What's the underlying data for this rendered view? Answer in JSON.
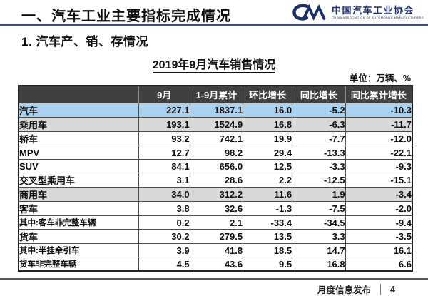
{
  "header": {
    "title": "一、汽车工业主要指标完成情况",
    "logo": {
      "mark": "CM-swoosh",
      "name_cn": "中国汽车工业协会",
      "name_en": "CHINA ASSOCIATION OF AUTOMOBILE MANUFACTURERS"
    }
  },
  "section_title": "1. 汽车产、销、存情况",
  "table_title": "2019年9月汽车销售情况",
  "unit_label": "单位：万辆、%",
  "table": {
    "columns": [
      "",
      "9月",
      "1-9月累计",
      "环比增长",
      "同比增长",
      "同比累计增长"
    ],
    "rows": [
      {
        "label": "汽车",
        "values": [
          "227.1",
          "1837.1",
          "16.0",
          "-5.2",
          "-10.3"
        ],
        "style": "blue",
        "indent": 0,
        "small": false
      },
      {
        "label": "乘用车",
        "values": [
          "193.1",
          "1524.9",
          "16.8",
          "-6.3",
          "-11.7"
        ],
        "style": "gray",
        "indent": 1,
        "small": false
      },
      {
        "label": "轿车",
        "values": [
          "93.2",
          "742.1",
          "19.9",
          "-7.7",
          "-12.0"
        ],
        "style": "white",
        "indent": 3,
        "small": false
      },
      {
        "label": "MPV",
        "values": [
          "12.7",
          "98.2",
          "29.4",
          "-13.3",
          "-22.1"
        ],
        "style": "white",
        "indent": 3,
        "small": false
      },
      {
        "label": "SUV",
        "values": [
          "84.1",
          "656.0",
          "12.5",
          "-3.3",
          "-9.3"
        ],
        "style": "white",
        "indent": 3,
        "small": false
      },
      {
        "label": "交叉型乘用车",
        "values": [
          "3.1",
          "28.6",
          "2.2",
          "-12.5",
          "-15.1"
        ],
        "style": "white",
        "indent": 3,
        "small": false
      },
      {
        "label": "商用车",
        "values": [
          "34.0",
          "312.2",
          "11.6",
          "1.9",
          "-3.4"
        ],
        "style": "gray",
        "indent": 1,
        "small": false
      },
      {
        "label": "客车",
        "values": [
          "3.8",
          "32.6",
          "-1.3",
          "-7.5",
          "-2.0"
        ],
        "style": "white",
        "indent": 2,
        "small": false
      },
      {
        "label": "其中:客车非完整车辆",
        "values": [
          "0.2",
          "2.1",
          "-33.4",
          "-34.5",
          "-9.4"
        ],
        "style": "white",
        "indent": 4,
        "small": true
      },
      {
        "label": "货车",
        "values": [
          "30.2",
          "279.5",
          "13.5",
          "3.3",
          "-3.5"
        ],
        "style": "white",
        "indent": 2,
        "small": false
      },
      {
        "label": "其中:半挂牵引车",
        "values": [
          "3.9",
          "41.8",
          "18.5",
          "14.7",
          "16.1"
        ],
        "style": "white",
        "indent": 4,
        "small": true
      },
      {
        "label": "货车非完整车辆",
        "values": [
          "4.5",
          "43.6",
          "9.5",
          "16.8",
          "6.6"
        ],
        "style": "white",
        "indent": 4,
        "small": true
      }
    ]
  },
  "footer": {
    "label": "月度信息发布",
    "page": "4"
  },
  "colors": {
    "accent_navy": "#1b2f6b",
    "rule_blue": "#3b5080",
    "header_row_bg": "#404040",
    "highlight_row_bg": "#a9d2f0",
    "subtotal_row_bg": "#d9d9d9",
    "footer_rule": "#555555"
  }
}
